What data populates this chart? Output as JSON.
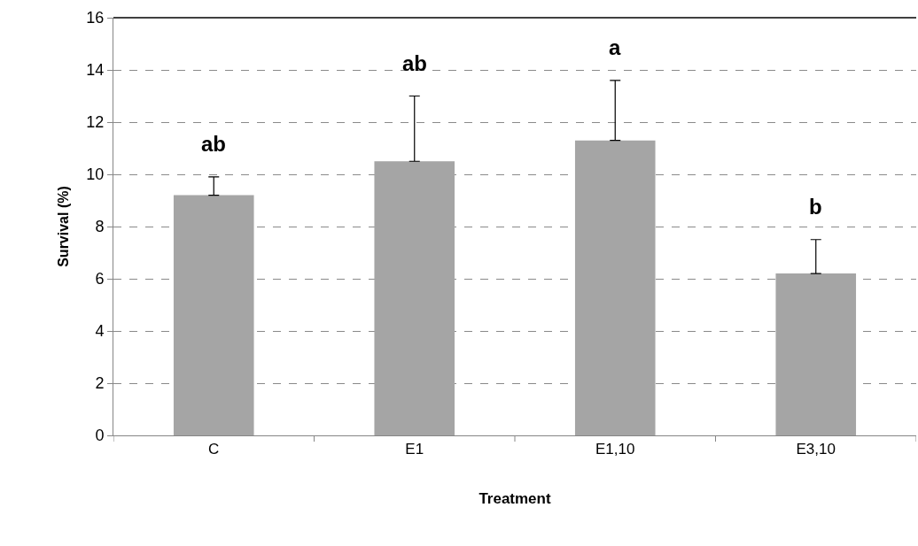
{
  "chart_data": {
    "type": "bar",
    "xlabel": "Treatment",
    "ylabel": "Survival (%)",
    "categories": [
      "C",
      "E1",
      "E1,10",
      "E3,10"
    ],
    "values": [
      9.2,
      10.5,
      11.3,
      6.2
    ],
    "errors": [
      [
        9.2,
        9.9
      ],
      [
        10.5,
        13.0
      ],
      [
        11.3,
        13.6
      ],
      [
        6.2,
        7.5
      ]
    ],
    "color": "#a5a5a5",
    "ylim": [
      0,
      16
    ],
    "yticks": [
      0,
      2,
      4,
      6,
      8,
      10,
      12,
      14,
      16
    ],
    "grid": "y",
    "line_style": "dashed",
    "annotations": [
      "ab",
      "ab",
      "a",
      "b"
    ]
  }
}
